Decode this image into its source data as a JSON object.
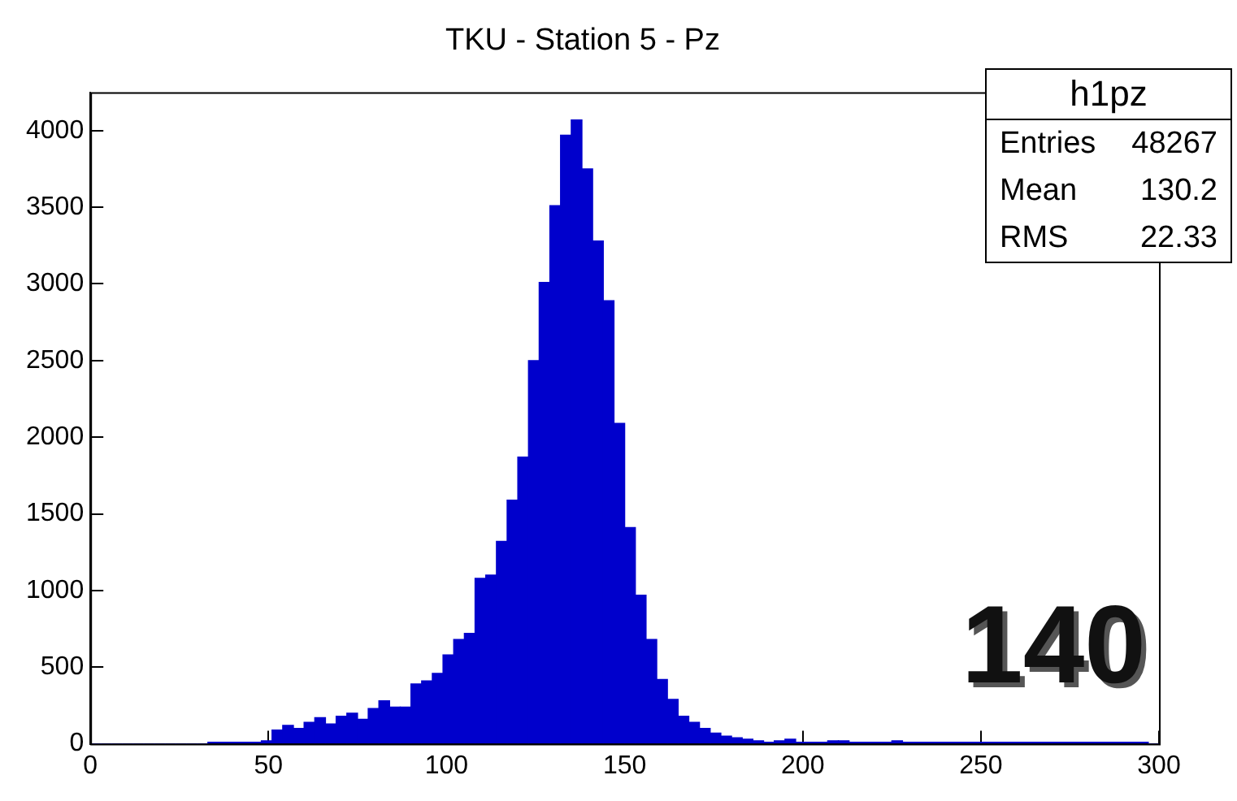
{
  "chart_data": {
    "type": "histogram",
    "title": "TKU - Station 5 - Pz",
    "bins": [
      0,
      3,
      6,
      9,
      12,
      15,
      18,
      21,
      24,
      27,
      30,
      33,
      36,
      39,
      42,
      45,
      48,
      51,
      54,
      57,
      60,
      63,
      66,
      69,
      72,
      75,
      78,
      81,
      84,
      87,
      90,
      93,
      96,
      99,
      102,
      105,
      108,
      111,
      114,
      117,
      120,
      123,
      126,
      129,
      132,
      135,
      138,
      141,
      144,
      147,
      150,
      153,
      156,
      159,
      162,
      165,
      168,
      171,
      174,
      177,
      180,
      183,
      186,
      189,
      192,
      195,
      198,
      201,
      204,
      207,
      210,
      213,
      216,
      219,
      222,
      225,
      228,
      231,
      234,
      237,
      240,
      243,
      246,
      249,
      252,
      255,
      258,
      261,
      264,
      267,
      270,
      273,
      276,
      279,
      282,
      285,
      288,
      291,
      294,
      297,
      300
    ],
    "values": [
      0,
      0,
      0,
      0,
      0,
      0,
      0,
      0,
      0,
      0,
      0,
      10,
      10,
      10,
      10,
      10,
      20,
      90,
      120,
      100,
      140,
      170,
      130,
      180,
      200,
      160,
      230,
      280,
      240,
      240,
      390,
      410,
      460,
      580,
      680,
      720,
      1080,
      1100,
      1320,
      1590,
      1870,
      2500,
      3010,
      3510,
      3970,
      4070,
      3750,
      3280,
      2890,
      2090,
      1410,
      970,
      680,
      420,
      290,
      180,
      140,
      100,
      70,
      50,
      40,
      30,
      20,
      10,
      20,
      30,
      10,
      10,
      10,
      20,
      20,
      10,
      10,
      10,
      10,
      20,
      10,
      10,
      10,
      10,
      10,
      10,
      10,
      10,
      10,
      10,
      10,
      10,
      10,
      10,
      10,
      10,
      10,
      10,
      10,
      10,
      10,
      10,
      10,
      0
    ],
    "color": "#0000cc",
    "xlim": [
      0,
      300
    ],
    "xticks": [
      0,
      50,
      100,
      150,
      200,
      250,
      300
    ],
    "ylim": [
      0,
      4250
    ],
    "yticks": [
      0,
      500,
      1000,
      1500,
      2000,
      2500,
      3000,
      3500,
      4000
    ],
    "grid": false,
    "legend": false,
    "annotations": [
      "h1pz",
      "Entries",
      "48267",
      "Mean",
      "130.2",
      "RMS",
      "22.33",
      "140"
    ]
  }
}
